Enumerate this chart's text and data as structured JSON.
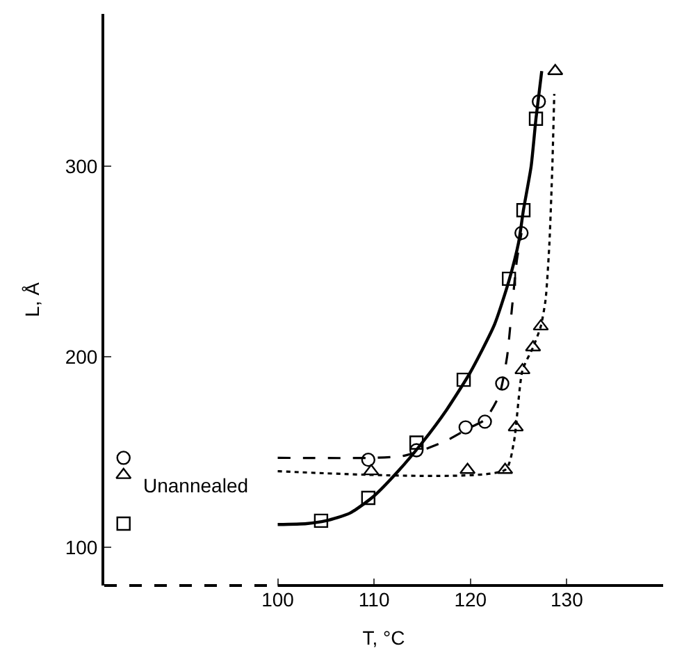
{
  "chart_data": {
    "type": "scatter",
    "xlabel": "T, °C",
    "ylabel": "L, Å",
    "xlim": [
      82,
      140
    ],
    "xticks": [
      100,
      110,
      120,
      130
    ],
    "ylim": [
      80,
      380
    ],
    "yticks": [
      100,
      200,
      300
    ],
    "annotations": [
      "Unannealed"
    ],
    "series": [
      {
        "type": "line",
        "line_style": "solid",
        "color": "#000000",
        "x": [
          100,
          103,
          105,
          107.5,
          110,
          112.5,
          115,
          117.5,
          120,
          122.5,
          124,
          125,
          125.5,
          126.3,
          126.8,
          127.4
        ],
        "values": [
          112,
          112.5,
          114,
          118,
          127,
          140,
          155,
          172,
          192,
          217,
          240,
          260,
          277,
          300,
          325,
          350
        ]
      },
      {
        "type": "line",
        "line_style": "dashed",
        "color": "#000000",
        "x": [
          100,
          110,
          113,
          115,
          117.5,
          120,
          121.5,
          123,
          123.8,
          124.3,
          124.8,
          125.3
        ],
        "values": [
          147,
          147,
          148,
          151,
          156,
          163,
          167,
          180,
          200,
          225,
          250,
          265
        ]
      },
      {
        "type": "line",
        "line_style": "dotted",
        "color": "#000000",
        "x": [
          100,
          123.6,
          124.5,
          125.4,
          126.5,
          127.3,
          127.8,
          128.2,
          128.5,
          128.7
        ],
        "values": [
          140,
          140.7,
          155,
          193,
          205,
          216,
          230,
          260,
          300,
          338
        ]
      },
      {
        "marker": "square",
        "color": "#000000",
        "x": [
          84,
          104.5,
          109.4,
          114.4,
          119.3,
          124,
          125.5,
          126.8
        ],
        "values": [
          112.5,
          114,
          126,
          155,
          188,
          241,
          277,
          325
        ]
      },
      {
        "marker": "circle",
        "color": "#000000",
        "x": [
          84,
          109.4,
          114.4,
          119.5,
          121.5,
          123.3,
          125.3,
          127.1
        ],
        "values": [
          147,
          146,
          151,
          163,
          166,
          186,
          265,
          334
        ]
      },
      {
        "marker": "triangle",
        "color": "#000000",
        "x": [
          84,
          109.7,
          119.7,
          123.6,
          124.7,
          125.4,
          126.5,
          127.3,
          128.8
        ],
        "values": [
          138,
          140,
          140.7,
          140.7,
          163,
          193,
          205,
          216,
          350
        ]
      }
    ]
  }
}
